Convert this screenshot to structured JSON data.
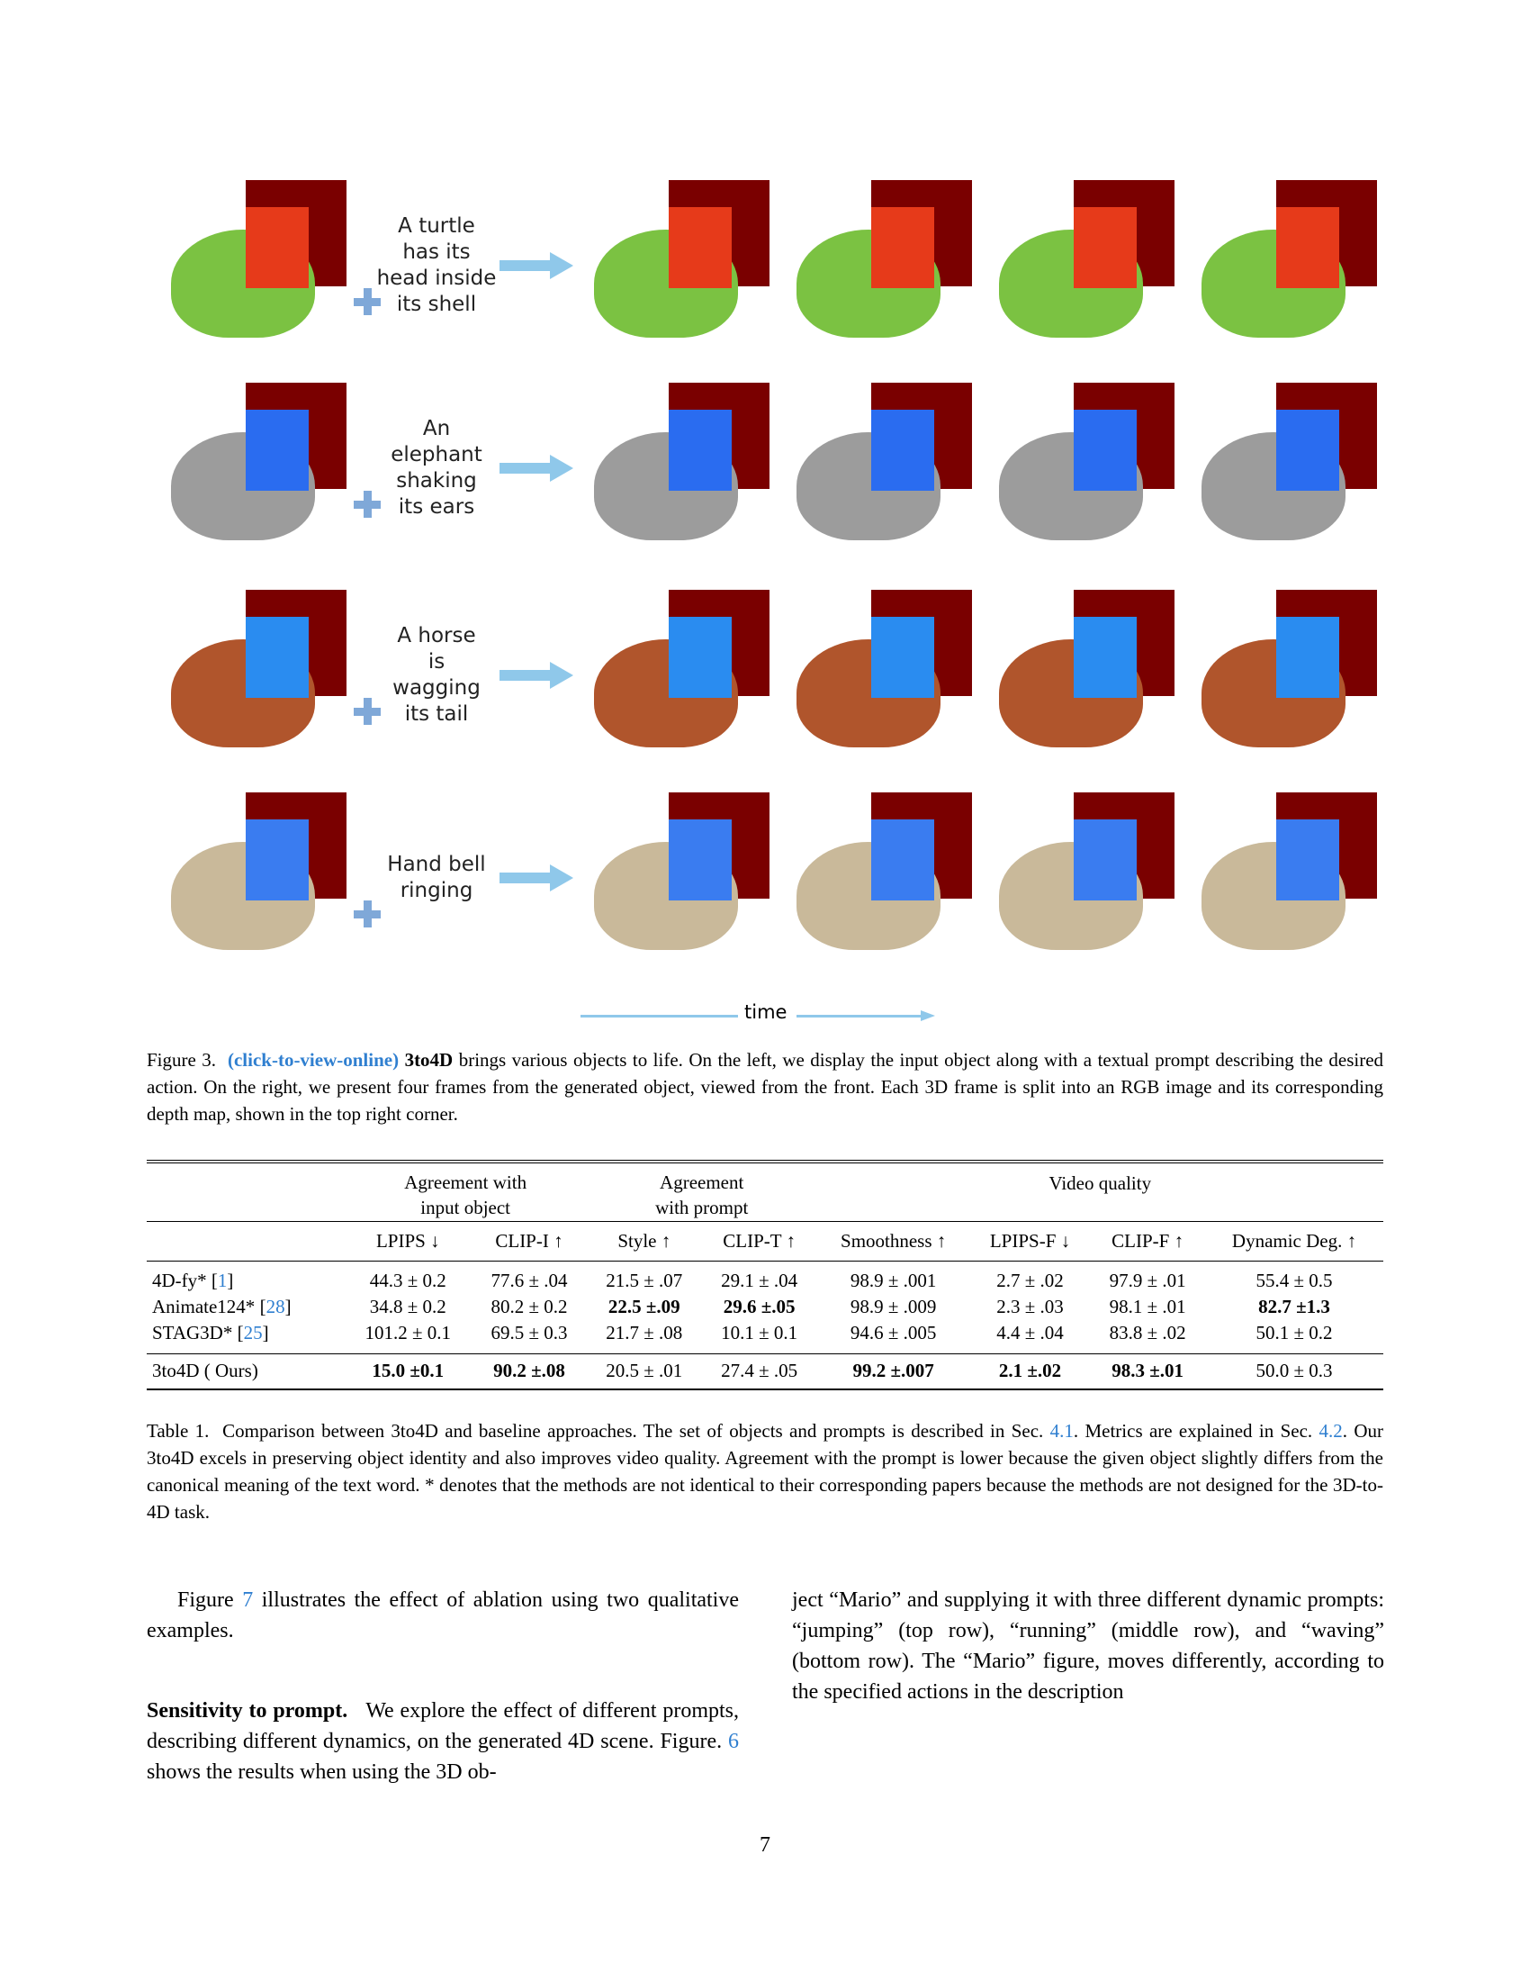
{
  "figure": {
    "rows": [
      {
        "name": "turtle",
        "prompt_lines": [
          "A turtle",
          "has its",
          "head inside",
          "its shell"
        ],
        "body_color": "#7bc242",
        "hot_color": "#e63a1a"
      },
      {
        "name": "elephant",
        "prompt_lines": [
          "An",
          "elephant",
          "shaking",
          "its ears"
        ],
        "body_color": "#9c9c9c",
        "hot_color": "#2a6cf0"
      },
      {
        "name": "horse",
        "prompt_lines": [
          "A horse",
          "is",
          "wagging",
          "its tail"
        ],
        "body_color": "#b0552c",
        "hot_color": "#2a8cf0"
      },
      {
        "name": "hand-bell",
        "prompt_lines": [
          "Hand bell",
          "ringing"
        ],
        "body_color": "#c9b99a",
        "hot_color": "#3a7cf0"
      }
    ],
    "time_label": "time",
    "colors": {
      "depth_bg": "#7a0000",
      "arrow": "#8fc8ea",
      "plus": "#7fa8d8"
    }
  },
  "figure_caption": {
    "label": "Figure 3.",
    "link": "(click-to-view-online)",
    "name": "3to4D",
    "text": "brings various objects to life. On the left, we display the input object along with a textual prompt describing the desired action. On the right, we present four frames from the generated object, viewed from the front. Each 3D frame is split into an RGB image and its corresponding depth map, shown in the top right corner."
  },
  "table": {
    "groups": {
      "agreement_object": [
        "Agreement with",
        "input object"
      ],
      "agreement_prompt": [
        "Agreement",
        "with prompt"
      ],
      "video_quality": "Video quality"
    },
    "columns": [
      "LPIPS ↓",
      "CLIP-I ↑",
      "Style ↑",
      "CLIP-T ↑",
      "Smoothness ↑",
      "LPIPS-F ↓",
      "CLIP-F ↑",
      "Dynamic Deg. ↑"
    ],
    "rows": [
      {
        "method": "4D-fy*",
        "ref": "1",
        "cells": [
          "44.3 ± 0.2",
          "77.6 ± .04",
          "21.5 ± .07",
          "29.1 ± .04",
          "98.9 ± .001",
          "2.7 ± .02",
          "97.9 ± .01",
          "55.4 ± 0.5"
        ]
      },
      {
        "method": "Animate124*",
        "ref": "28",
        "cells": [
          "34.8 ± 0.2",
          "80.2 ± 0.2",
          "22.5 ±.09",
          "29.6 ±.05",
          "98.9 ± .009",
          "2.3 ± .03",
          "98.1 ± .01",
          "82.7 ±1.3"
        ]
      },
      {
        "method": "STAG3D*",
        "ref": "25",
        "cells": [
          "101.2 ± 0.1",
          "69.5 ± 0.3",
          "21.7 ± .08",
          "10.1 ± 0.1",
          "94.6 ± .005",
          "4.4 ± .04",
          "83.8 ± .02",
          "50.1 ± 0.2"
        ]
      }
    ],
    "ours": {
      "method": "3to4D ( Ours)",
      "cells": [
        "15.0 ±0.1",
        "90.2 ±.08",
        "20.5 ± .01",
        "27.4 ± .05",
        "99.2 ±.007",
        "2.1 ±.02",
        "98.3 ±.01",
        "50.0 ± 0.3"
      ]
    },
    "bold": {
      "r1": [
        2,
        3,
        7
      ],
      "ours": [
        0,
        1,
        4,
        5,
        6
      ]
    }
  },
  "table_caption": {
    "label": "Table 1.",
    "t1": "Comparison between 3to4D and baseline approaches. The set of objects and prompts is described in Sec.",
    "ref1": "4.1",
    "t2": ". Metrics are explained in Sec.",
    "ref2": "4.2",
    "t3": ". Our 3to4D excels in preserving object identity and also improves video quality. Agreement with the prompt is lower because the given object slightly differs from the canonical meaning of the text word. * denotes that the methods are not identical to their corresponding papers because the methods are not designed for the 3D-to-4D task."
  },
  "body": {
    "p1_a": "Figure",
    "p1_ref": "7",
    "p1_b": "illustrates the effect of ablation using two qualitative examples.",
    "p2_head": "Sensitivity to prompt.",
    "p2_a": "We explore the effect of different prompts, describing different dynamics, on the generated 4D scene. Figure.",
    "p2_ref": "6",
    "p2_b": "shows the results when using the 3D ob-",
    "right_col": "ject “Mario” and supplying it with three different dynamic prompts: “jumping” (top row), “running” (middle row), and “waving” (bottom row). The “Mario” figure, moves differently, according to the specified actions in the description"
  },
  "page_number": "7"
}
